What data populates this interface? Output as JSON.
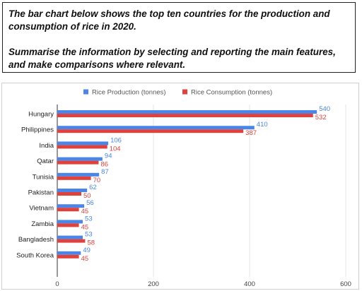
{
  "task": {
    "line1": "The bar chart below shows the top ten countries for the production and consumption of rice in 2020.",
    "line2": "Summarise the information by selecting and reporting the main features, and make comparisons where relevant."
  },
  "chart_data": {
    "type": "bar",
    "orientation": "horizontal",
    "categories": [
      "Hungary",
      "Philippines",
      "India",
      "Qatar",
      "Tunisia",
      "Pakistan",
      "Vietnam",
      "Zambia",
      "Bangladesh",
      "South Korea"
    ],
    "series": [
      {
        "name": "Rice Production (tonnes)",
        "color": "#4a86e8",
        "values": [
          540,
          410,
          106,
          94,
          87,
          62,
          56,
          53,
          53,
          49
        ]
      },
      {
        "name": "Rice Consumption (tonnes)",
        "color": "#e0413a",
        "values": [
          532,
          387,
          104,
          86,
          70,
          50,
          45,
          45,
          58,
          45
        ]
      }
    ],
    "xlim": [
      0,
      600
    ],
    "xticks": [
      "0",
      "200",
      "400",
      "600"
    ],
    "legend_position": "top",
    "grid": "vertical"
  }
}
